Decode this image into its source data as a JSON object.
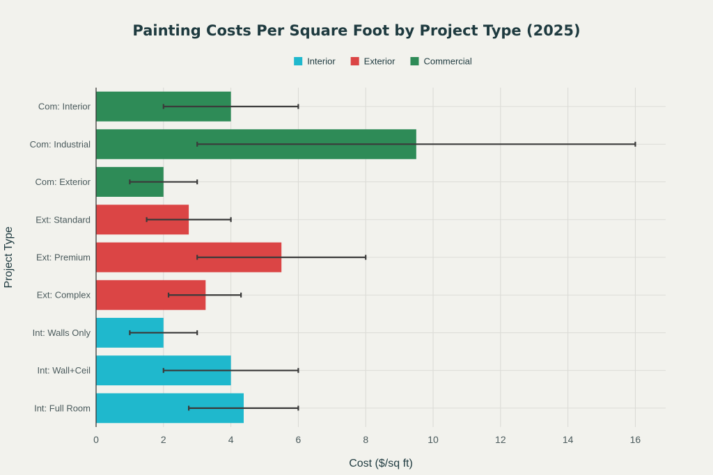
{
  "chart_data": {
    "type": "bar",
    "orientation": "horizontal",
    "title": "Painting Costs Per Square Foot by Project Type (2025)",
    "xlabel": "Cost ($/sq ft)",
    "ylabel": "Project Type",
    "xlim": [
      0,
      16.9
    ],
    "xticks": [
      0,
      2,
      4,
      6,
      8,
      10,
      12,
      14,
      16
    ],
    "grid": true,
    "legend_position": "top-center",
    "legend": [
      {
        "name": "Interior",
        "color": "#1fb8cd"
      },
      {
        "name": "Exterior",
        "color": "#db4545"
      },
      {
        "name": "Commercial",
        "color": "#2e8b57"
      }
    ],
    "categories": [
      "Int: Full Room",
      "Int: Wall+Ceil",
      "Int: Walls Only",
      "Ext: Complex",
      "Ext: Premium",
      "Ext: Standard",
      "Com: Exterior",
      "Com: Industrial",
      "Com: Interior"
    ],
    "values": [
      4.38,
      4.0,
      2.0,
      3.25,
      5.5,
      2.75,
      2.0,
      9.5,
      4.0
    ],
    "group": [
      "Interior",
      "Interior",
      "Interior",
      "Exterior",
      "Exterior",
      "Exterior",
      "Commercial",
      "Commercial",
      "Commercial"
    ],
    "error_low": [
      2.75,
      2.0,
      1.0,
      2.15,
      3.0,
      1.5,
      1.0,
      3.0,
      2.0
    ],
    "error_high": [
      6.0,
      6.0,
      3.0,
      4.3,
      8.0,
      4.0,
      3.0,
      16.0,
      6.0
    ]
  }
}
